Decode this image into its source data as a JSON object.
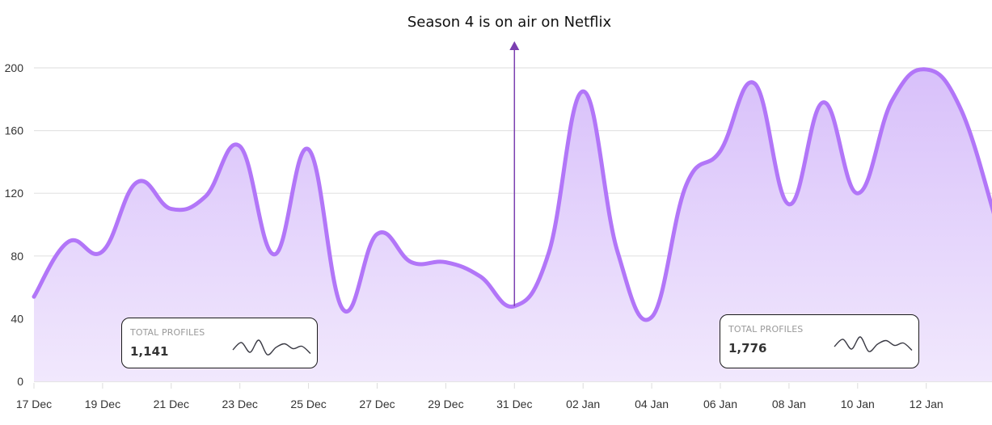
{
  "annotation": {
    "text": "Season 4 is on air on Netflix",
    "date": "31 Dec",
    "arrow_color": "#7b3fb0"
  },
  "colors": {
    "line": "#b276f8",
    "fill_top": "#d8c0fa",
    "fill_bottom": "#f1e8fd",
    "grid": "#e4e4e4"
  },
  "cards": [
    {
      "label": "TOTAL PROFILES",
      "value": "1,141",
      "sparkline": [
        8,
        14,
        6,
        16,
        4,
        10,
        13,
        9,
        11,
        5
      ]
    },
    {
      "label": "TOTAL PROFILES",
      "value": "1,776",
      "sparkline": [
        8,
        14,
        6,
        16,
        4,
        10,
        13,
        9,
        11,
        5
      ]
    }
  ],
  "chart_data": {
    "type": "area",
    "title": "Season 4 is on air on Netflix",
    "xlabel": "",
    "ylabel": "",
    "ylim": [
      0,
      200
    ],
    "yticks": [
      0,
      40,
      80,
      120,
      160,
      200
    ],
    "xtick_labels": [
      "17 Dec",
      "19 Dec",
      "21 Dec",
      "23 Dec",
      "25 Dec",
      "27 Dec",
      "29 Dec",
      "31 Dec",
      "02 Jan",
      "04 Jan",
      "06 Jan",
      "08 Jan",
      "10 Jan",
      "12 Jan"
    ],
    "grid": true,
    "legend": null,
    "x": [
      "17 Dec",
      "18 Dec",
      "19 Dec",
      "20 Dec",
      "21 Dec",
      "22 Dec",
      "23 Dec",
      "24 Dec",
      "25 Dec",
      "26 Dec",
      "27 Dec",
      "28 Dec",
      "29 Dec",
      "30 Dec",
      "31 Dec",
      "01 Jan",
      "02 Jan",
      "03 Jan",
      "04 Jan",
      "05 Jan",
      "06 Jan",
      "07 Jan",
      "08 Jan",
      "09 Jan",
      "10 Jan",
      "11 Jan",
      "12 Jan",
      "13 Jan",
      "14 Jan"
    ],
    "series": [
      {
        "name": "Profiles",
        "values": [
          54,
          89,
          83,
          127,
          110,
          118,
          150,
          81,
          148,
          46,
          94,
          76,
          76,
          67,
          48,
          82,
          185,
          83,
          41,
          125,
          147,
          190,
          113,
          178,
          120,
          179,
          199,
          174,
          105
        ]
      }
    ],
    "annotations": [
      {
        "x": "31 Dec",
        "text": "Season 4 is on air on Netflix",
        "type": "arrow"
      }
    ]
  }
}
